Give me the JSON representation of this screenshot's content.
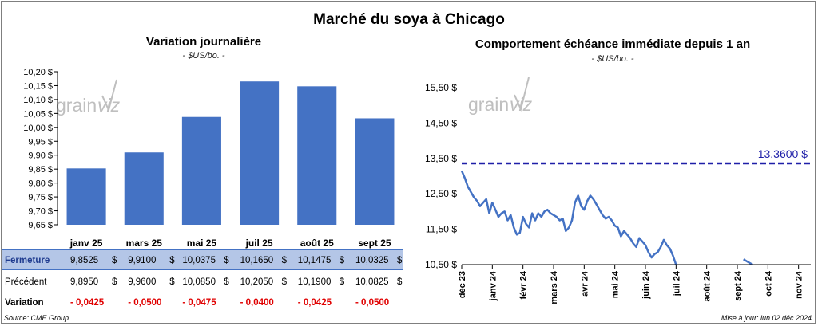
{
  "title": "Marché du soya à Chicago",
  "left_panel": {
    "title": "Variation journalière",
    "unit": "- $US/bo. -",
    "watermark_left": "grain",
    "watermark_right": "viz"
  },
  "right_panel": {
    "title": "Comportement échéance immédiate depuis 1 an",
    "unit": "- $US/bo. -",
    "reference_label": "13,3600 $",
    "watermark_left": "grain",
    "watermark_right": "viz"
  },
  "table": {
    "rows": [
      {
        "label": "Fermeture",
        "values": [
          "9,8525",
          "9,9100",
          "10,0375",
          "10,1650",
          "10,1475",
          "10,0325"
        ],
        "suffix": "$"
      },
      {
        "label": "Précédent",
        "values": [
          "9,8950",
          "9,9600",
          "10,0850",
          "10,2050",
          "10,1900",
          "10,0825"
        ],
        "suffix": "$"
      },
      {
        "label": "Variation",
        "values": [
          "- 0,0425",
          "- 0,0500",
          "- 0,0475",
          "- 0,0400",
          "- 0,0425",
          "- 0,0500"
        ],
        "suffix": ""
      }
    ]
  },
  "source": "Source: CME Group",
  "updated": "Mise à jour: lun 02 déc 2024",
  "colors": {
    "bar": "#4472c4",
    "line": "#4472c4",
    "reference": "#1f1fa8",
    "close_row": "#b4c6e7",
    "negative": "#e00000",
    "watermark": "#bfbfbf"
  },
  "chart_data": [
    {
      "type": "bar",
      "categories": [
        "janv 25",
        "mars 25",
        "mai 25",
        "juil 25",
        "août 25",
        "sept 25"
      ],
      "values": [
        9.8525,
        9.91,
        10.0375,
        10.165,
        10.1475,
        10.0325
      ],
      "ylim": [
        9.65,
        10.2
      ],
      "yticks": [
        9.65,
        9.7,
        9.75,
        9.8,
        9.85,
        9.9,
        9.95,
        10.0,
        10.05,
        10.1,
        10.15,
        10.2
      ],
      "ytick_labels": [
        "9,65 $",
        "9,70 $",
        "9,75 $",
        "9,80 $",
        "9,85 $",
        "9,90 $",
        "9,95 $",
        "10,00 $",
        "10,05 $",
        "10,10 $",
        "10,15 $",
        "10,20 $"
      ],
      "grid": false
    },
    {
      "type": "line",
      "x_labels": [
        "déc 23",
        "janv 24",
        "févr 24",
        "mars 24",
        "avr 24",
        "mai 24",
        "juin 24",
        "juil 24",
        "août 24",
        "sept 24",
        "oct 24",
        "nov 24"
      ],
      "xlim": [
        0,
        11.4
      ],
      "ylim": [
        10.5,
        15.5
      ],
      "yticks": [
        10.5,
        11.5,
        12.5,
        13.5,
        14.5,
        15.5
      ],
      "ytick_labels": [
        "10,50 $",
        "11,50 $",
        "12,50 $",
        "13,50 $",
        "14,50 $",
        "15,50 $"
      ],
      "reference_line": 13.36,
      "series": [
        {
          "x": [
            0.0,
            0.1,
            0.2,
            0.3,
            0.4,
            0.5,
            0.6,
            0.7,
            0.8,
            0.9,
            1.0,
            1.1,
            1.2,
            1.3,
            1.4,
            1.5,
            1.6,
            1.7,
            1.8,
            1.9,
            2.0,
            2.1,
            2.2,
            2.3,
            2.4,
            2.5,
            2.6,
            2.7,
            2.8,
            2.9,
            3.0,
            3.1,
            3.2,
            3.3,
            3.4,
            3.5,
            3.6,
            3.7,
            3.8,
            3.9,
            4.0,
            4.1,
            4.2,
            4.3,
            4.4,
            4.5,
            4.6,
            4.7,
            4.8,
            4.9,
            5.0,
            5.1,
            5.2,
            5.3,
            5.4,
            5.5,
            5.6,
            5.7,
            5.8,
            5.9,
            6.0,
            6.1,
            6.2,
            6.3,
            6.4,
            6.5,
            6.6,
            6.7,
            6.8,
            6.9,
            7.0
          ],
          "y": [
            13.15,
            12.95,
            12.7,
            12.55,
            12.4,
            12.3,
            12.15,
            12.25,
            12.35,
            11.95,
            12.25,
            12.05,
            11.85,
            11.95,
            12.0,
            11.75,
            11.9,
            11.55,
            11.35,
            11.4,
            11.85,
            11.65,
            11.55,
            11.95,
            11.75,
            11.95,
            11.85,
            12.0,
            12.05,
            11.95,
            11.9,
            11.85,
            11.75,
            11.8,
            11.45,
            11.55,
            11.75,
            12.25,
            12.45,
            12.15,
            12.05,
            12.3,
            12.45,
            12.35,
            12.2,
            12.05,
            11.9,
            11.8,
            11.85,
            11.75,
            11.6,
            11.55,
            11.3,
            11.45,
            11.35,
            11.25,
            11.1,
            11.0,
            11.25,
            11.15,
            11.05,
            10.85,
            10.7,
            10.8,
            10.85,
            11.0,
            11.2,
            11.05,
            10.95,
            10.75,
            10.5
          ]
        },
        {
          "x": [
            9.2,
            9.3,
            9.4,
            9.5
          ],
          "y": [
            10.65,
            10.6,
            10.55,
            10.5
          ]
        }
      ],
      "grid": false
    }
  ]
}
